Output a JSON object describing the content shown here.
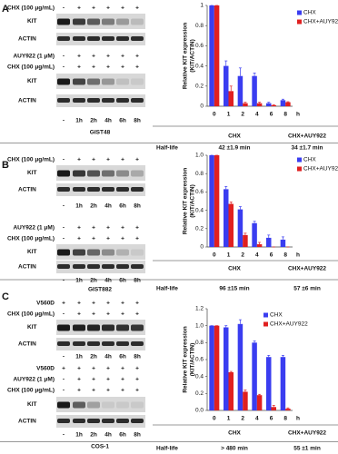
{
  "panels": [
    {
      "letter": "A",
      "groups": [
        {
          "rows": [
            {
              "label": "CHX (100 μg/mL)",
              "signs": [
                "-",
                "+",
                "+",
                "+",
                "+",
                "+"
              ]
            }
          ],
          "bands": [
            "KIT",
            "ACTIN"
          ]
        },
        {
          "rows": [
            {
              "label": "AUY922 (1 μM)",
              "signs": [
                "-",
                "+",
                "+",
                "+",
                "+",
                "+"
              ]
            },
            {
              "label": "CHX (100 μg/mL)",
              "signs": [
                "-",
                "+",
                "+",
                "+",
                "+",
                "+"
              ]
            }
          ],
          "bands": [
            "KIT",
            "ACTIN"
          ],
          "times": [
            "-",
            "1h",
            "2h",
            "4h",
            "6h",
            "8h"
          ]
        }
      ],
      "cell_line": "GIST48",
      "half_life": {
        "label": "Half-life",
        "columns": [
          "CHX",
          "CHX+AUY922"
        ],
        "values": [
          "42 ±1.9 min",
          "34 ±1.7 min"
        ]
      }
    },
    {
      "letter": "B",
      "groups": [
        {
          "rows": [
            {
              "label": "CHX (100 μg/mL)",
              "signs": [
                "-",
                "+",
                "+",
                "+",
                "+",
                "+"
              ]
            }
          ],
          "bands": [
            "KIT",
            "ACTIN"
          ],
          "times": [
            "-",
            "1h",
            "2h",
            "4h",
            "6h",
            "8h"
          ]
        },
        {
          "rows": [
            {
              "label": "AUY922 (1 μM)",
              "signs": [
                "-",
                "+",
                "+",
                "+",
                "+",
                "+"
              ]
            },
            {
              "label": "CHX (100 μg/mL)",
              "signs": [
                "-",
                "+",
                "+",
                "+",
                "+",
                "+"
              ]
            }
          ],
          "bands": [
            "KIT",
            "ACTIN"
          ],
          "times": [
            "-",
            "1h",
            "2h",
            "4h",
            "6h",
            "8h"
          ]
        }
      ],
      "cell_line": "GIST882",
      "half_life": {
        "label": "Half-life",
        "columns": [
          "CHX",
          "CHX+AUY922"
        ],
        "values": [
          "96 ±15 min",
          "57 ±6 min"
        ]
      }
    },
    {
      "letter": "C",
      "groups": [
        {
          "rows": [
            {
              "label": "V560D",
              "signs": [
                "+",
                "+",
                "+",
                "+",
                "+",
                "+"
              ]
            },
            {
              "label": "CHX (100 μg/mL)",
              "signs": [
                "-",
                "+",
                "+",
                "+",
                "+",
                "+"
              ]
            }
          ],
          "bands": [
            "KIT",
            "ACTIN"
          ],
          "times": [
            "-",
            "1h",
            "2h",
            "4h",
            "6h",
            "8h"
          ]
        },
        {
          "rows": [
            {
              "label": "V560D",
              "signs": [
                "+",
                "+",
                "+",
                "+",
                "+",
                "+"
              ]
            },
            {
              "label": "AUY922 (1 μM)",
              "signs": [
                "-",
                "+",
                "+",
                "+",
                "+",
                "+"
              ]
            },
            {
              "label": "CHX (100 μg/mL)",
              "signs": [
                "-",
                "+",
                "+",
                "+",
                "+",
                "+"
              ]
            }
          ],
          "bands": [
            "KIT",
            "ACTIN"
          ],
          "times": [
            "-",
            "1h",
            "2h",
            "4h",
            "6h",
            "8h"
          ]
        }
      ],
      "cell_line": "COS-1",
      "half_life": {
        "label": "Half-life",
        "columns": [
          "CHX",
          "CHX+AUY922"
        ],
        "values": [
          "> 480 min",
          "55 ±1 min"
        ]
      }
    }
  ],
  "chart_data": [
    {
      "type": "bar",
      "ylabel": [
        "Relative KIT expression",
        "(KIT/ACTIN)"
      ],
      "xlabel": "h",
      "categories": [
        "0",
        "1",
        "2",
        "4",
        "6",
        "8"
      ],
      "series": [
        {
          "name": "CHX",
          "color": "#3a3df0",
          "values": [
            1,
            0.4,
            0.3,
            0.3,
            0.03,
            0.06
          ],
          "errors": [
            0,
            0.05,
            0.08,
            0.03,
            0.01,
            0.01
          ]
        },
        {
          "name": "CHX+AUY922",
          "color": "#e02020",
          "values": [
            1,
            0.15,
            0.03,
            0.03,
            0.01,
            0.04
          ],
          "errors": [
            0,
            0.05,
            0.01,
            0.01,
            0.005,
            0.005
          ]
        }
      ],
      "ylim": [
        0,
        1
      ],
      "yticks": [
        0,
        0.2,
        0.4,
        0.6,
        0.8,
        1
      ],
      "legend": "right"
    },
    {
      "type": "bar",
      "ylabel": [
        "Relative KIT expression",
        "(KIT/ACTIN)"
      ],
      "xlabel": "h",
      "categories": [
        "0",
        "1",
        "2",
        "4",
        "6",
        "8"
      ],
      "series": [
        {
          "name": "CHX",
          "color": "#3a3df0",
          "values": [
            1,
            0.63,
            0.41,
            0.26,
            0.1,
            0.08
          ],
          "errors": [
            0,
            0.03,
            0.03,
            0.02,
            0.03,
            0.03
          ]
        },
        {
          "name": "CHX+AUY922",
          "color": "#e02020",
          "values": [
            1,
            0.47,
            0.13,
            0.03,
            0,
            0
          ],
          "errors": [
            0,
            0.02,
            0.02,
            0.02,
            0,
            0
          ]
        }
      ],
      "ylim": [
        0,
        1
      ],
      "yticks": [
        0,
        0.2,
        0.4,
        0.6,
        0.8,
        {
          "value": 1,
          "label": "1.0"
        }
      ],
      "legend": "right"
    },
    {
      "type": "bar",
      "ylabel": [
        "Relative KIT expression",
        "(KIT/ACTIN)"
      ],
      "xlabel": "h",
      "categories": [
        "0",
        "1",
        "2",
        "4",
        "6",
        "8"
      ],
      "series": [
        {
          "name": "CHX",
          "color": "#3a3df0",
          "values": [
            1,
            0.98,
            1.02,
            0.8,
            0.63,
            0.63
          ],
          "errors": [
            0,
            0.02,
            0.05,
            0.02,
            0.02,
            0.02
          ]
        },
        {
          "name": "CHX+AUY922",
          "color": "#e02020",
          "values": [
            1,
            0.45,
            0.22,
            0.18,
            0.04,
            0.02
          ],
          "errors": [
            0,
            0.01,
            0.02,
            0.01,
            0.02,
            0.01
          ]
        }
      ],
      "ylim": [
        0,
        1.2
      ],
      "yticks": [
        {
          "value": 0,
          "label": "0.0"
        },
        0.2,
        0.4,
        0.6,
        0.8,
        {
          "value": 1,
          "label": "1.0"
        },
        1.2
      ],
      "legend": "top-right"
    }
  ]
}
